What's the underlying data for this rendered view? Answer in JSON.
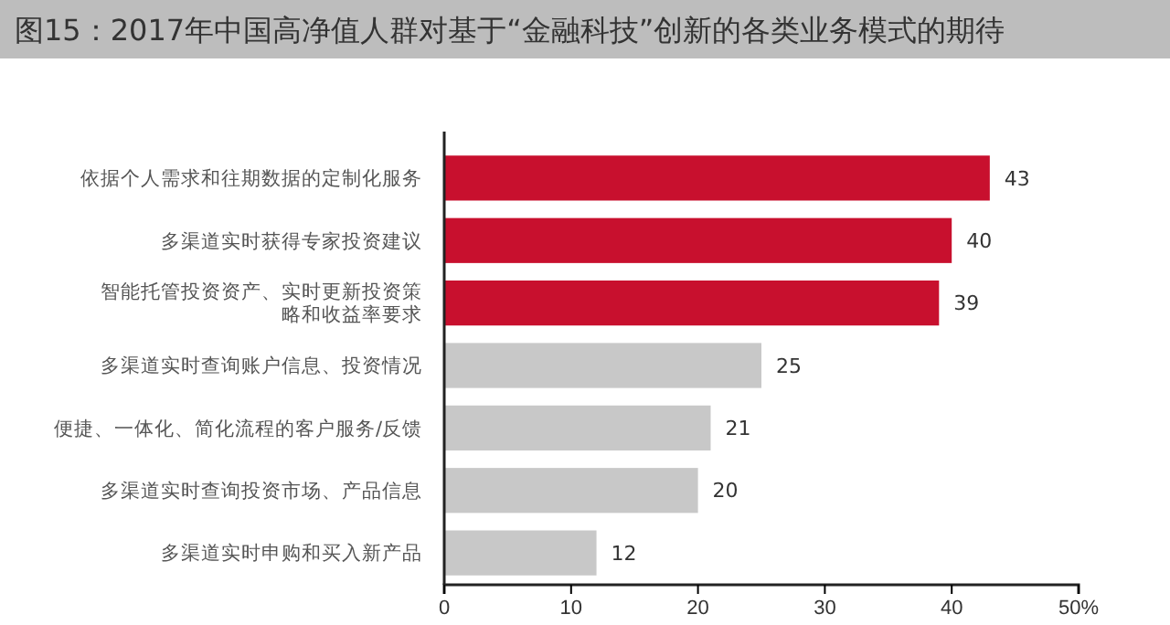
{
  "chart_data": {
    "type": "bar",
    "orientation": "horizontal",
    "title": "图15：2017年中国高净值人群对基于“金融科技”创新的各类业务模式的期待",
    "categories": [
      "依据个人需求和往期数据的定制化服务",
      "多渠道实时获得专家投资建议",
      "智能托管投资资产、实时更新投资策略和收益率要求",
      "多渠道实时查询账户信息、投资情况",
      "便捷、一体化、简化流程的客户服务/反馈",
      "多渠道实时查询投资市场、产品信息",
      "多渠道实时申购和买入新产品"
    ],
    "values": [
      43,
      40,
      39,
      25,
      21,
      20,
      12
    ],
    "colors": [
      "#c8102e",
      "#c8102e",
      "#c8102e",
      "#c8c8c8",
      "#c8c8c8",
      "#c8c8c8",
      "#c8c8c8"
    ],
    "xlim": [
      0,
      50
    ],
    "xticks": [
      0,
      10,
      20,
      30,
      40,
      {
        "value": 50,
        "label": "50%"
      }
    ],
    "data_labels": true
  }
}
